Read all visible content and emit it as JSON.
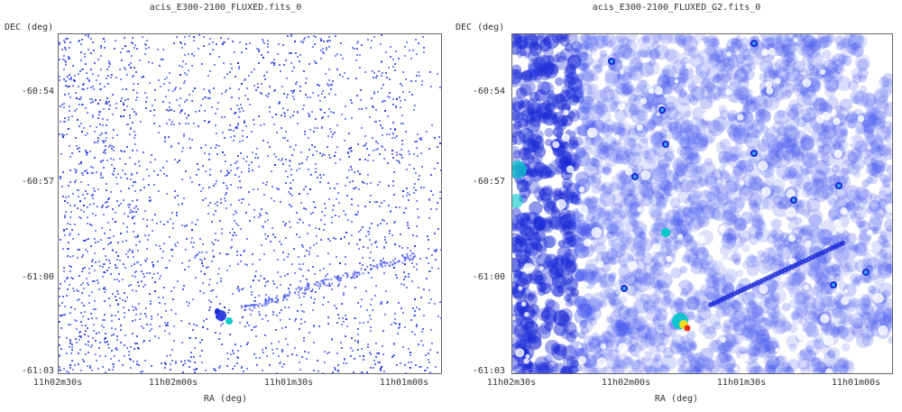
{
  "panels": [
    {
      "title": "acis_E300-2100_FLUXED.fits_0",
      "ylabel": "DEC (deg)",
      "xlabel": "RA (deg)",
      "yticks": [
        "-60:54",
        "-60:57",
        "-61:00",
        "-61:03"
      ],
      "xticks": [
        "11h02m30s",
        "11h02m00s",
        "11h01m30s",
        "11h01m00s"
      ]
    },
    {
      "title": "acis_E300-2100_FLUXED_G2.fits_0",
      "ylabel": "DEC (deg)",
      "xlabel": "RA (deg)",
      "yticks": [
        "-60:54",
        "-60:57",
        "-61:00",
        "-61:03"
      ],
      "xticks": [
        "11h02m30s",
        "11h02m00s",
        "11h01m30s",
        "11h01m00s"
      ]
    }
  ],
  "colors": {
    "low": "#4a5cf0",
    "mid": "#1a2ad8",
    "high": "#00c8c8",
    "peak": "#e83020"
  }
}
